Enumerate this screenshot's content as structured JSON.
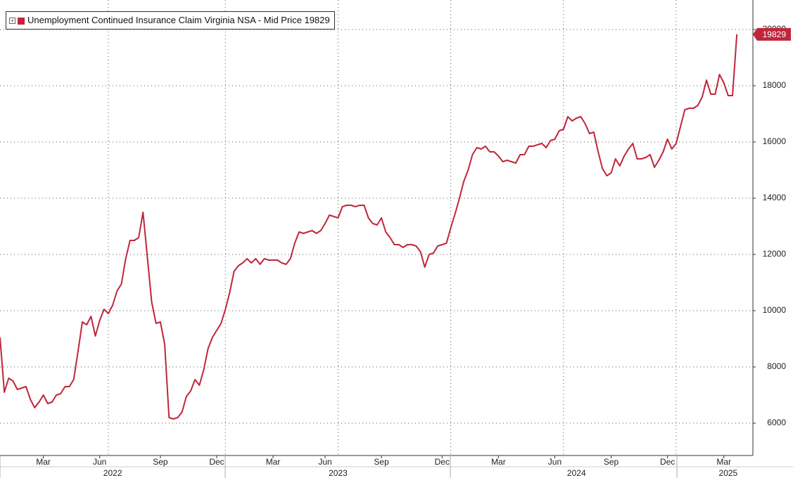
{
  "chart_data": {
    "type": "line",
    "categories": [
      null,
      null,
      null,
      null,
      null,
      null,
      null,
      null,
      null,
      null,
      "Mar",
      null,
      null,
      null,
      null,
      null,
      null,
      null,
      null,
      null,
      null,
      null,
      null,
      "Jun",
      null,
      null,
      null,
      null,
      null,
      null,
      null,
      null,
      null,
      null,
      null,
      null,
      null,
      "Sep",
      null,
      null,
      null,
      null,
      null,
      null,
      null,
      null,
      null,
      null,
      null,
      null,
      "Dec",
      null,
      null,
      null,
      null,
      null,
      null,
      null,
      null,
      null,
      null,
      null,
      null,
      "Mar",
      null,
      null,
      null,
      null,
      null,
      null,
      null,
      null,
      null,
      null,
      null,
      "Jun",
      null,
      null,
      null,
      null,
      null,
      null,
      null,
      null,
      null,
      null,
      null,
      null,
      "Sep",
      null,
      null,
      null,
      null,
      null,
      null,
      null,
      null,
      null,
      null,
      null,
      null,
      null,
      "Dec",
      null,
      null,
      null,
      null,
      null,
      null,
      null,
      null,
      null,
      null,
      null,
      null,
      "Mar",
      null,
      null,
      null,
      null,
      null,
      null,
      null,
      null,
      null,
      null,
      null,
      null,
      "Jun",
      null,
      null,
      null,
      null,
      null,
      null,
      null,
      null,
      null,
      null,
      null,
      null,
      "Sep",
      null,
      null,
      null,
      null,
      null,
      null,
      null,
      null,
      null,
      null,
      null,
      null,
      "Dec",
      null,
      null,
      null,
      null,
      null,
      null,
      null,
      null,
      null,
      null,
      null,
      null,
      "Mar",
      null,
      null,
      null
    ],
    "x_years": [
      null,
      null,
      null,
      null,
      null,
      null,
      null,
      null,
      null,
      null,
      null,
      null,
      null,
      null,
      null,
      null,
      null,
      null,
      null,
      null,
      null,
      null,
      null,
      null,
      null,
      null,
      "2022",
      null,
      null,
      null,
      null,
      null,
      null,
      null,
      null,
      null,
      null,
      null,
      null,
      null,
      null,
      null,
      null,
      null,
      null,
      null,
      null,
      null,
      null,
      null,
      null,
      null,
      null,
      null,
      null,
      null,
      null,
      null,
      null,
      null,
      null,
      null,
      null,
      null,
      null,
      null,
      null,
      null,
      null,
      null,
      null,
      null,
      null,
      null,
      null,
      null,
      null,
      null,
      "2023",
      null,
      null,
      null,
      null,
      null,
      null,
      null,
      null,
      null,
      null,
      null,
      null,
      null,
      null,
      null,
      null,
      null,
      null,
      null,
      null,
      null,
      null,
      null,
      null,
      null,
      null,
      null,
      null,
      null,
      null,
      null,
      null,
      null,
      null,
      null,
      null,
      null,
      null,
      null,
      null,
      null,
      null,
      null,
      null,
      null,
      null,
      null,
      null,
      null,
      null,
      null,
      null,
      null,
      null,
      "2024",
      null,
      null,
      null,
      null,
      null,
      null,
      null,
      null,
      null,
      null,
      null,
      null,
      null,
      null,
      null,
      null,
      null,
      null,
      null,
      null,
      null,
      null,
      null,
      null,
      null,
      null,
      null,
      null,
      null,
      null,
      null,
      null,
      null,
      null,
      "2025",
      null,
      null,
      null,
      null,
      null
    ],
    "series": [
      {
        "name": "Unemployment Continued Insurance Claim Virginia NSA - Mid Price",
        "color": "#c0263a",
        "values": [
          9050,
          7100,
          7600,
          7500,
          7200,
          7250,
          7300,
          6850,
          6550,
          6750,
          7000,
          6700,
          6750,
          7000,
          7050,
          7300,
          7300,
          7550,
          8550,
          9600,
          9500,
          9800,
          9100,
          9650,
          10050,
          9900,
          10200,
          10700,
          10950,
          11850,
          12500,
          12500,
          12600,
          13500,
          11900,
          10300,
          9550,
          9600,
          8800,
          6200,
          6150,
          6200,
          6400,
          6950,
          7150,
          7550,
          7350,
          7900,
          8650,
          9050,
          9300,
          9550,
          10050,
          10650,
          11400,
          11600,
          11700,
          11850,
          11700,
          11850,
          11650,
          11850,
          11800,
          11800,
          11800,
          11700,
          11650,
          11850,
          12400,
          12800,
          12750,
          12800,
          12850,
          12750,
          12850,
          13100,
          13400,
          13350,
          13300,
          13700,
          13750,
          13750,
          13700,
          13750,
          13750,
          13300,
          13100,
          13050,
          13300,
          12800,
          12600,
          12350,
          12350,
          12250,
          12350,
          12350,
          12300,
          12100,
          11550,
          12000,
          12050,
          12300,
          12350,
          12400,
          12950,
          13450,
          14000,
          14600,
          15000,
          15550,
          15800,
          15750,
          15850,
          15650,
          15650,
          15500,
          15300,
          15350,
          15300,
          15250,
          15550,
          15550,
          15850,
          15850,
          15900,
          15950,
          15800,
          16050,
          16100,
          16400,
          16450,
          16900,
          16750,
          16850,
          16900,
          16650,
          16300,
          16350,
          15650,
          15050,
          14800,
          14900,
          15400,
          15150,
          15500,
          15750,
          15950,
          15400,
          15400,
          15450,
          15550,
          15100,
          15350,
          15650,
          16100,
          15750,
          15950,
          16550,
          17150,
          17200,
          17200,
          17300,
          17600,
          18200,
          17700,
          17700,
          18400,
          18100,
          17650,
          17650,
          19829
        ]
      }
    ],
    "ylim": [
      4850,
      21050
    ],
    "yticks": [
      6000,
      8000,
      10000,
      12000,
      14000,
      16000,
      18000,
      20000
    ],
    "grid": true
  }
}
